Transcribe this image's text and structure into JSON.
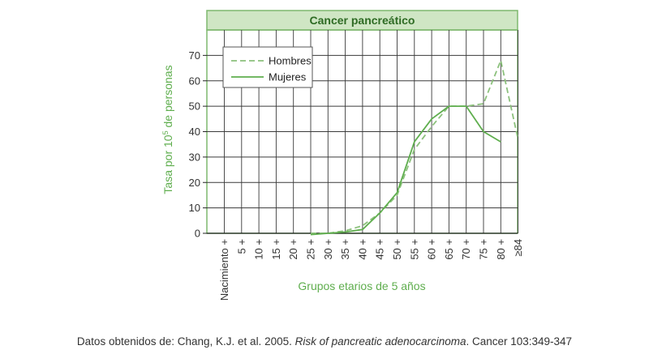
{
  "chart_data": {
    "type": "line",
    "title": "Cancer pancreático",
    "xlabel": "Grupos etarios de 5 años",
    "ylabel": "Tasa por 10⁵ de personas",
    "ylabel_main": "Tasa por 10",
    "ylabel_sup": "5",
    "ylabel_tail": " de personas",
    "categories": [
      "Nacimiento +",
      "5 +",
      "10 +",
      "15 +",
      "20 +",
      "25 +",
      "30 +",
      "35 +",
      "40 +",
      "45 +",
      "50 +",
      "55 +",
      "60 +",
      "65 +",
      "70 +",
      "75 +",
      "80 +",
      "≥84"
    ],
    "yticks": [
      0,
      10,
      20,
      30,
      40,
      50,
      60,
      70
    ],
    "ylim": [
      0,
      80
    ],
    "grid": true,
    "legend_position": "top-left",
    "series": [
      {
        "name": "Hombres",
        "style": "dashed",
        "color": "#8cc17c",
        "values": [
          null,
          null,
          null,
          null,
          null,
          0,
          0,
          1,
          3,
          8,
          15,
          33,
          42,
          50,
          50,
          51,
          68,
          37
        ]
      },
      {
        "name": "Mujeres",
        "style": "solid",
        "color": "#5fae4e",
        "values": [
          null,
          null,
          null,
          null,
          null,
          -0.5,
          0,
          0.5,
          1.5,
          8,
          16,
          36,
          45,
          50,
          50,
          40,
          36,
          null
        ]
      }
    ]
  },
  "footer": {
    "source_prefix": "Datos obtenidos de: Chang, K.J. et al. 2005. ",
    "source_italic": "Risk of pancreatic adenocarcinoma",
    "source_suffix": ". Cancer 103:349-347"
  },
  "colors": {
    "title_band": "#cfe6c4",
    "frame": "#7fb86f",
    "grid": "#3a3a3a",
    "axis_title": "#5fae4e"
  }
}
